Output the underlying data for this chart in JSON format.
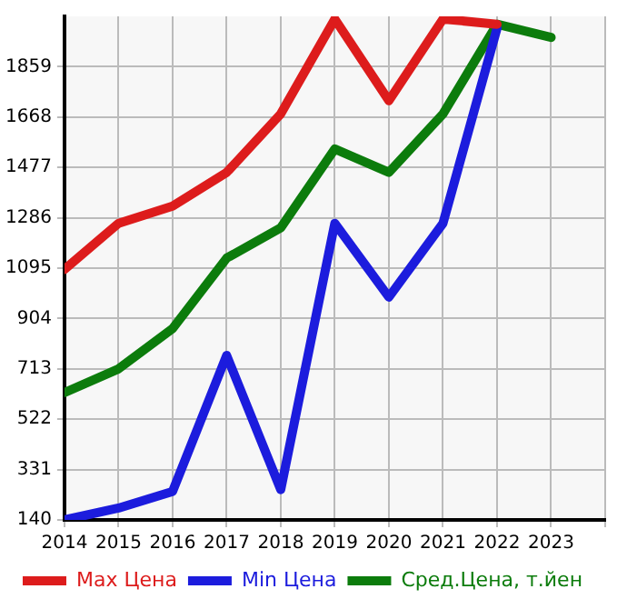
{
  "chart_data": {
    "type": "line",
    "x": [
      2014,
      2015,
      2016,
      2017,
      2018,
      2019,
      2020,
      2021,
      2022,
      2023
    ],
    "series": [
      {
        "name": "Max Цена",
        "color": "#dd1c1c",
        "values": [
          1090,
          1265,
          1330,
          1458,
          1680,
          2040,
          1730,
          2040,
          2020,
          null
        ]
      },
      {
        "name": "Min Цена",
        "color": "#1c1cdd",
        "values": [
          140,
          185,
          248,
          764,
          255,
          1265,
          985,
          1265,
          2005,
          null
        ]
      },
      {
        "name": "Сред.Цена, т.йен",
        "color": "#0c7c0c",
        "values": [
          623,
          713,
          866,
          1133,
          1248,
          1547,
          1458,
          1680,
          2020,
          1970
        ]
      }
    ],
    "xlim": [
      2014,
      2024
    ],
    "xticks": [
      2014,
      2015,
      2016,
      2017,
      2018,
      2019,
      2020,
      2021,
      2022,
      2023,
      {
        "value": 2024,
        "label": null
      }
    ],
    "ylim": [
      140,
      2050
    ],
    "yticks": [
      140,
      331,
      522,
      713,
      904,
      1095,
      1286,
      1477,
      1668,
      1859
    ],
    "grid": true,
    "legend": "bottom",
    "marker": "none",
    "line_style": "solid"
  }
}
